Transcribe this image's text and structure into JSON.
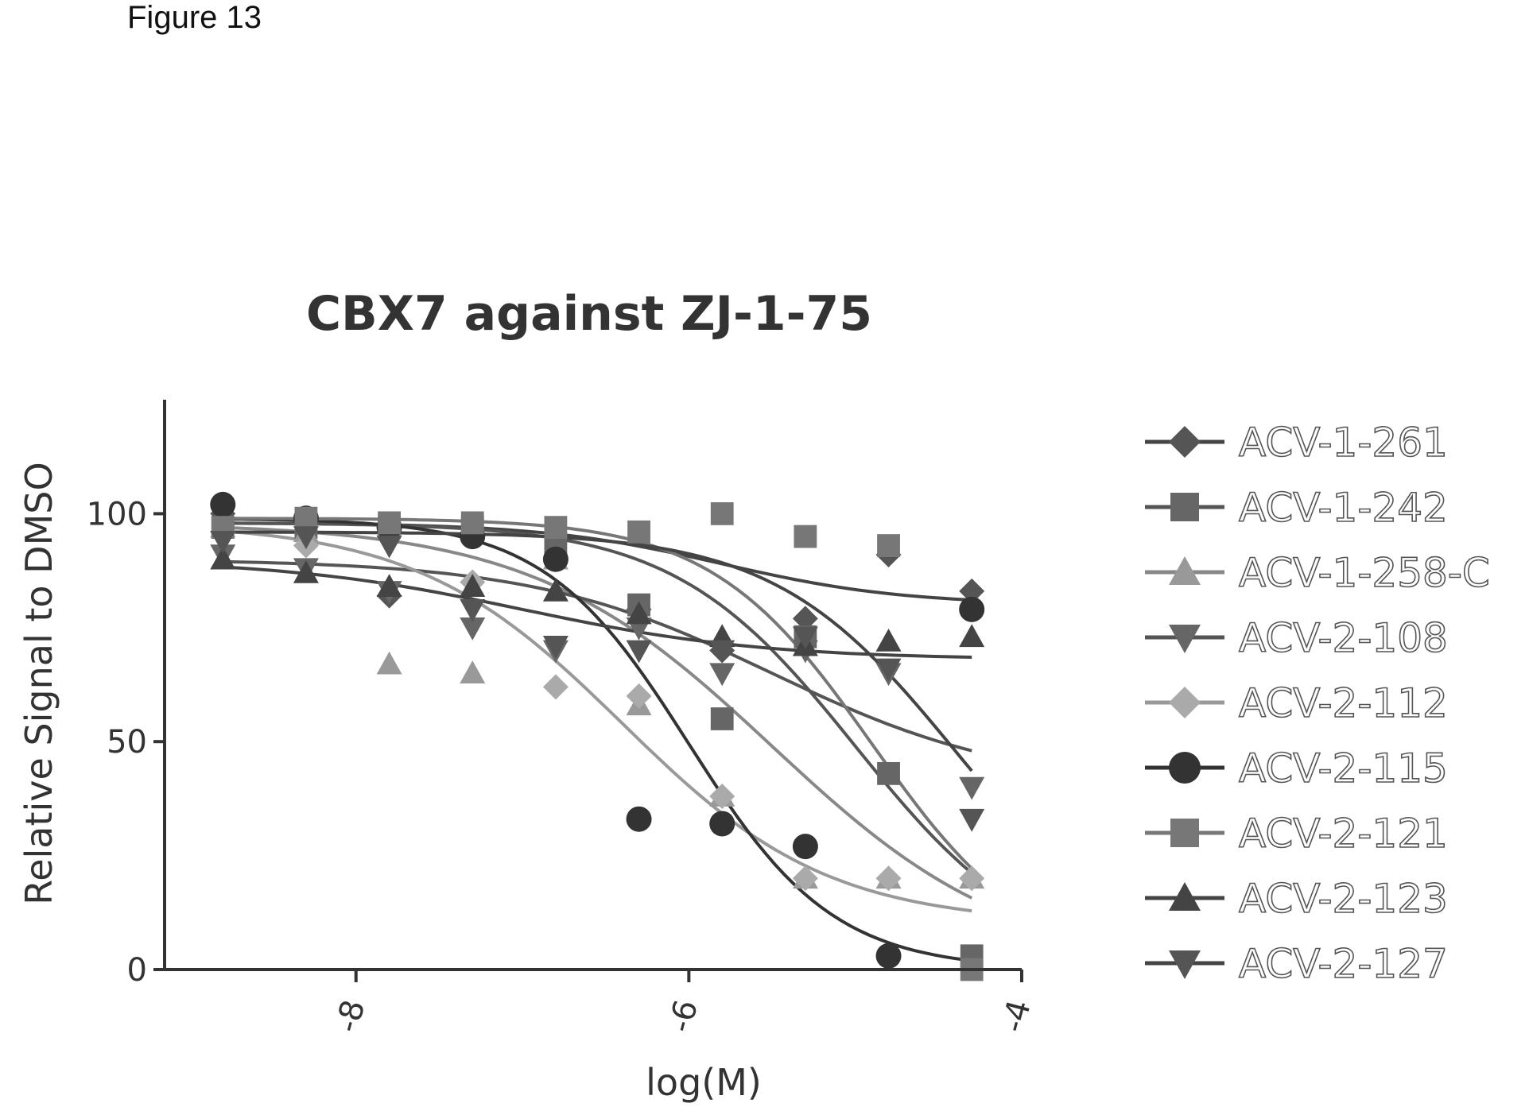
{
  "figure_label": "Figure 13",
  "chart_data": {
    "type": "scatter",
    "title": "CBX7 against ZJ-1-75",
    "xlabel": "log(M)",
    "ylabel": "Relative Signal to DMSO",
    "xlim": [
      -9.15,
      -4.0
    ],
    "ylim": [
      0,
      125
    ],
    "xticks": [
      -8,
      -6,
      -4
    ],
    "xtick_labels": [
      "-8",
      "-6",
      "-4"
    ],
    "yticks": [
      0,
      50,
      100
    ],
    "ytick_labels": [
      "0",
      "50",
      "100"
    ],
    "grid": false,
    "legend_position": "right",
    "x": [
      -8.8,
      -8.3,
      -7.8,
      -7.3,
      -6.8,
      -6.3,
      -5.8,
      -5.3,
      -4.8,
      -4.3
    ],
    "series": [
      {
        "name": "ACV-1-261",
        "marker": "diamond",
        "color": "#555555",
        "lineColor": "#444444",
        "values": [
          100,
          98,
          82,
          95,
          90,
          79,
          70,
          77,
          91,
          83
        ],
        "fit": {
          "top": 98,
          "bottom": 80,
          "logEC50": -5.8,
          "hill": 0.8
        }
      },
      {
        "name": "ACV-1-242",
        "marker": "square",
        "color": "#666666",
        "lineColor": "#555555",
        "values": [
          97,
          97,
          97,
          97,
          93,
          80,
          55,
          73,
          43,
          3
        ],
        "fit": {
          "top": 98,
          "bottom": 0,
          "logEC50": -5.0,
          "hill": 0.8
        }
      },
      {
        "name": "ACV-1-258-C",
        "marker": "triangle-up",
        "color": "#999999",
        "lineColor": "#888888",
        "values": [
          97,
          96,
          67,
          65,
          90,
          58,
          38,
          20,
          20,
          20
        ],
        "fit": {
          "top": 98,
          "bottom": 0,
          "logEC50": -5.5,
          "hill": 0.6
        }
      },
      {
        "name": "ACV-2-108",
        "marker": "triangle-down",
        "color": "#666666",
        "lineColor": "#555555",
        "values": [
          91,
          88,
          83,
          75,
          70,
          75,
          65,
          70,
          65,
          40
        ],
        "fit": {
          "top": 90,
          "bottom": 40,
          "logEC50": -5.5,
          "hill": 0.6
        }
      },
      {
        "name": "ACV-2-112",
        "marker": "diamond",
        "color": "#aaaaaa",
        "lineColor": "#999999",
        "values": [
          96,
          93,
          95,
          85,
          62,
          60,
          38,
          20,
          20,
          20
        ],
        "fit": {
          "top": 98,
          "bottom": 10,
          "logEC50": -6.4,
          "hill": 0.7
        }
      },
      {
        "name": "ACV-2-115",
        "marker": "circle",
        "color": "#333333",
        "lineColor": "#333333",
        "values": [
          102,
          99,
          97,
          95,
          90,
          33,
          32,
          27,
          3,
          79
        ],
        "fit": {
          "top": 99,
          "bottom": 0,
          "logEC50": -6.0,
          "hill": 1.0
        }
      },
      {
        "name": "ACV-2-121",
        "marker": "square",
        "color": "#777777",
        "lineColor": "#777777",
        "values": [
          97,
          99,
          98,
          98,
          97,
          96,
          100,
          95,
          93,
          0
        ],
        "fit": {
          "top": 99,
          "bottom": 0,
          "logEC50": -4.9,
          "hill": 0.9
        }
      },
      {
        "name": "ACV-2-123",
        "marker": "triangle-up",
        "color": "#444444",
        "lineColor": "#444444",
        "values": [
          90,
          87,
          84,
          84,
          83,
          78,
          73,
          71,
          72,
          73
        ],
        "fit": {
          "top": 90,
          "bottom": 68,
          "logEC50": -7.0,
          "hill": 0.6
        }
      },
      {
        "name": "ACV-2-127",
        "marker": "triangle-down",
        "color": "#555555",
        "lineColor": "#444444",
        "values": [
          94,
          95,
          93,
          79,
          71,
          70,
          70,
          73,
          66,
          33
        ],
        "fit": {
          "top": 96,
          "bottom": 0,
          "logEC50": -4.4,
          "hill": 0.8
        }
      }
    ]
  }
}
